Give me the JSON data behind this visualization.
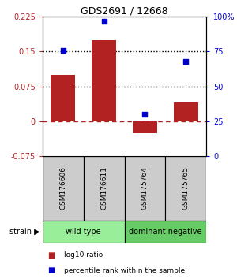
{
  "title": "GDS2691 / 12668",
  "samples": [
    "GSM176606",
    "GSM176611",
    "GSM175764",
    "GSM175765"
  ],
  "log10_ratio": [
    0.1,
    0.175,
    -0.025,
    0.04
  ],
  "percentile_rank": [
    76,
    97,
    30,
    68
  ],
  "left_ylim": [
    -0.075,
    0.225
  ],
  "right_ylim": [
    0,
    100
  ],
  "left_yticks": [
    -0.075,
    0,
    0.075,
    0.15,
    0.225
  ],
  "right_yticks": [
    0,
    25,
    50,
    75,
    100
  ],
  "right_yticklabels": [
    "0",
    "25",
    "50",
    "75",
    "100%"
  ],
  "hlines_dotted": [
    0.075,
    0.15
  ],
  "hline_dashed_red": 0,
  "bar_color": "#B22222",
  "scatter_color": "#0000CC",
  "groups": [
    {
      "label": "wild type",
      "samples": [
        0,
        1
      ],
      "color": "#99EE99"
    },
    {
      "label": "dominant negative",
      "samples": [
        2,
        3
      ],
      "color": "#66CC66"
    }
  ],
  "legend_items": [
    {
      "color": "#B22222",
      "label": "log10 ratio"
    },
    {
      "color": "#0000CC",
      "label": "percentile rank within the sample"
    }
  ],
  "strain_label": "strain",
  "bar_width": 0.6,
  "sample_box_color": "#CCCCCC"
}
